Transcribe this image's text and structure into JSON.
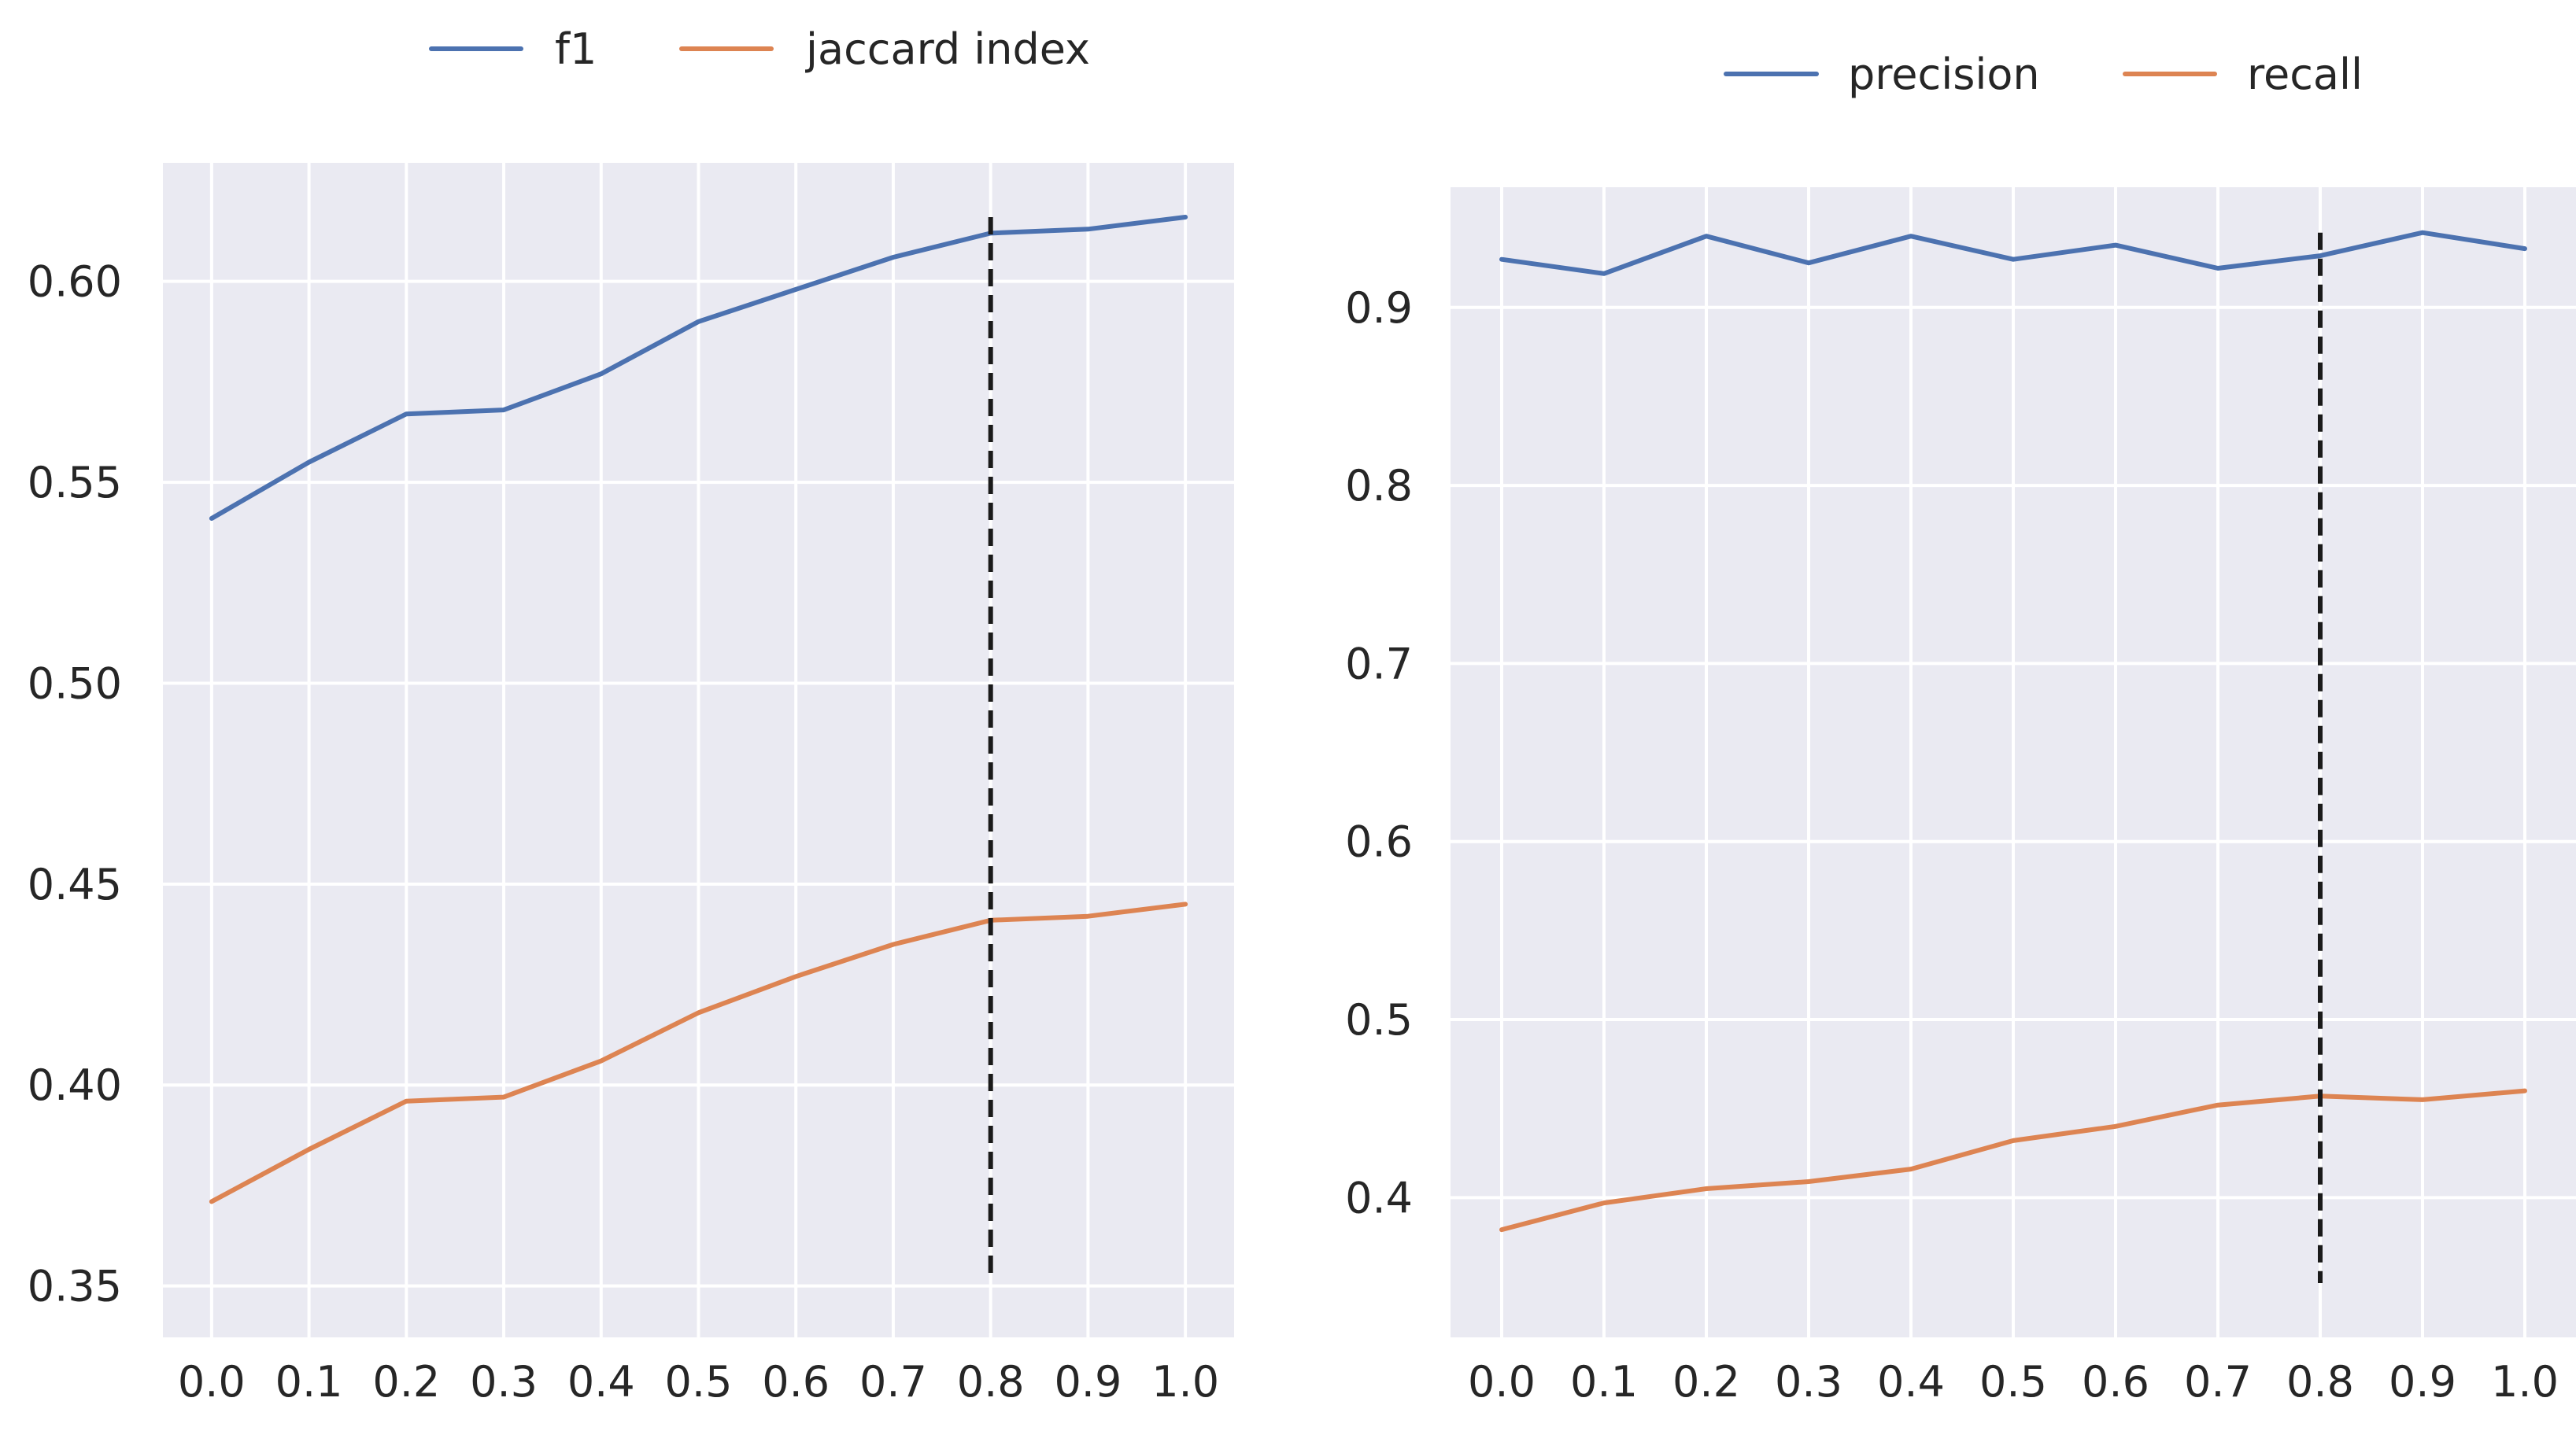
{
  "chart_data": [
    {
      "type": "line",
      "title": "",
      "xlabel": "",
      "ylabel": "",
      "x": [
        0.0,
        0.1,
        0.2,
        0.3,
        0.4,
        0.5,
        0.6,
        0.7,
        0.8,
        0.9,
        1.0
      ],
      "x_tick_labels": [
        "0.0",
        "0.1",
        "0.2",
        "0.3",
        "0.4",
        "0.5",
        "0.6",
        "0.7",
        "0.8",
        "0.9",
        "1.0"
      ],
      "xlim": [
        -0.05,
        1.05
      ],
      "ylim": [
        0.3372,
        0.6295
      ],
      "y_ticks": [
        0.35,
        0.4,
        0.45,
        0.5,
        0.55,
        0.6
      ],
      "y_tick_labels": [
        "0.35",
        "0.40",
        "0.45",
        "0.50",
        "0.55",
        "0.60"
      ],
      "grid": true,
      "legend_position": "top-center",
      "series": [
        {
          "name": "f1",
          "color": "#4c72b0",
          "values": [
            0.541,
            0.555,
            0.567,
            0.568,
            0.577,
            0.59,
            0.598,
            0.606,
            0.612,
            0.613,
            0.616
          ]
        },
        {
          "name": "jaccard index",
          "color": "#dd8452",
          "values": [
            0.371,
            0.384,
            0.396,
            0.397,
            0.406,
            0.418,
            0.427,
            0.435,
            0.441,
            0.442,
            0.445
          ]
        }
      ],
      "vline": {
        "x": 0.8,
        "y_range": [
          0.352,
          0.616
        ],
        "color": "#1a1a1a",
        "style": "dashed"
      }
    },
    {
      "type": "line",
      "title": "",
      "xlabel": "",
      "ylabel": "",
      "x": [
        0.0,
        0.1,
        0.2,
        0.3,
        0.4,
        0.5,
        0.6,
        0.7,
        0.8,
        0.9,
        1.0
      ],
      "x_tick_labels": [
        "0.0",
        "0.1",
        "0.2",
        "0.3",
        "0.4",
        "0.5",
        "0.6",
        "0.7",
        "0.8",
        "0.9",
        "1.0"
      ],
      "xlim": [
        -0.05,
        1.05
      ],
      "ylim": [
        0.3215,
        0.9675
      ],
      "y_ticks": [
        0.4,
        0.5,
        0.6,
        0.7,
        0.8,
        0.9
      ],
      "y_tick_labels": [
        "0.4",
        "0.5",
        "0.6",
        "0.7",
        "0.8",
        "0.9"
      ],
      "grid": true,
      "legend_position": "top-center",
      "series": [
        {
          "name": "precision",
          "color": "#4c72b0",
          "values": [
            0.927,
            0.919,
            0.94,
            0.925,
            0.94,
            0.927,
            0.935,
            0.922,
            0.929,
            0.942,
            0.933
          ]
        },
        {
          "name": "recall",
          "color": "#dd8452",
          "values": [
            0.382,
            0.397,
            0.405,
            0.409,
            0.416,
            0.432,
            0.44,
            0.452,
            0.457,
            0.455,
            0.46
          ]
        }
      ],
      "vline": {
        "x": 0.8,
        "y_range": [
          0.352,
          0.942
        ],
        "color": "#1a1a1a",
        "style": "dashed"
      }
    }
  ]
}
